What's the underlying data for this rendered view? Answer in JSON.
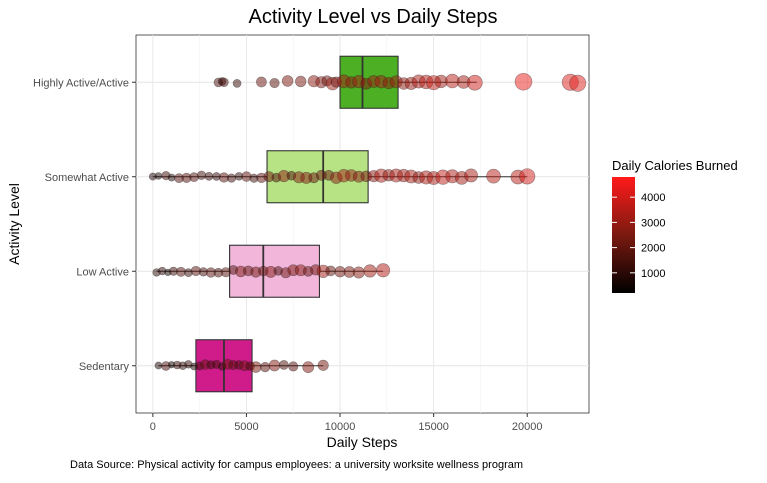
{
  "chart_data": {
    "type": "boxplot",
    "title": "Activity Level vs Daily Steps",
    "xlabel": "Daily Steps",
    "ylabel": "Activity Level",
    "xlim": [
      -900,
      23300
    ],
    "x_ticks": [
      0,
      5000,
      10000,
      15000,
      20000
    ],
    "categories": [
      "Highly Active/Active",
      "Somewhat Active",
      "Low Active",
      "Sedentary"
    ],
    "grid": true,
    "caption": "Data Source: Physical activity for campus employees: a university worksite wellness program",
    "legend": {
      "title": "Daily Calories Burned",
      "placement": "right",
      "ticks": [
        1000,
        2000,
        3000,
        4000
      ],
      "range": [
        200,
        4800
      ],
      "low_color": "#000000",
      "high_color": "#ff1a1a"
    },
    "boxes": [
      {
        "category": "Highly Active/Active",
        "min": 10000,
        "q1": 10000,
        "median": 11200,
        "q3": 13100,
        "max": 17300,
        "color": "#4daf24"
      },
      {
        "category": "Somewhat Active",
        "min": 0,
        "q1": 6100,
        "median": 9100,
        "q3": 11500,
        "max": 20000,
        "color": "#b7e384"
      },
      {
        "category": "Low Active",
        "min": 200,
        "q1": 4100,
        "median": 5900,
        "q3": 8900,
        "max": 12300,
        "color": "#f1b6da"
      },
      {
        "category": "Sedentary",
        "min": 300,
        "q1": 2300,
        "median": 3800,
        "q3": 5300,
        "max": 9100,
        "color": "#d01c8b"
      }
    ],
    "points": [
      {
        "category": "Highly Active/Active",
        "values": [
          3500,
          3700,
          3800,
          4500,
          5800,
          6500,
          7200,
          7900,
          8600,
          9000,
          9300,
          9600,
          9800,
          10200,
          10600,
          11000,
          11400,
          11800,
          12200,
          12600,
          13000,
          13400,
          13800,
          14200,
          14600,
          15000,
          15400,
          16000,
          16600,
          17200,
          19800,
          22300,
          22700
        ]
      },
      {
        "category": "Somewhat Active",
        "values": [
          0,
          300,
          700,
          1000,
          1400,
          1800,
          2200,
          2600,
          3000,
          3400,
          3800,
          4200,
          4600,
          5000,
          5400,
          5800,
          6200,
          6600,
          7000,
          7400,
          7800,
          8200,
          8600,
          9000,
          9400,
          9800,
          10200,
          10600,
          11000,
          11400,
          11800,
          12200,
          12600,
          13000,
          13400,
          13800,
          14200,
          14600,
          15000,
          15500,
          16000,
          16500,
          17000,
          18200,
          19500,
          20000
        ]
      },
      {
        "category": "Low Active",
        "values": [
          200,
          500,
          800,
          1100,
          1500,
          1900,
          2300,
          2700,
          3100,
          3500,
          3900,
          4300,
          4700,
          5100,
          5500,
          5900,
          6300,
          6700,
          7100,
          7500,
          7900,
          8300,
          8700,
          9100,
          9500,
          10000,
          10500,
          11000,
          11600,
          12300
        ]
      },
      {
        "category": "Sedentary",
        "values": [
          300,
          700,
          1000,
          1300,
          1600,
          1900,
          2200,
          2500,
          2800,
          3100,
          3400,
          3700,
          4000,
          4300,
          4600,
          4900,
          5200,
          5500,
          6000,
          6500,
          7000,
          7500,
          8300,
          9100
        ]
      }
    ]
  }
}
